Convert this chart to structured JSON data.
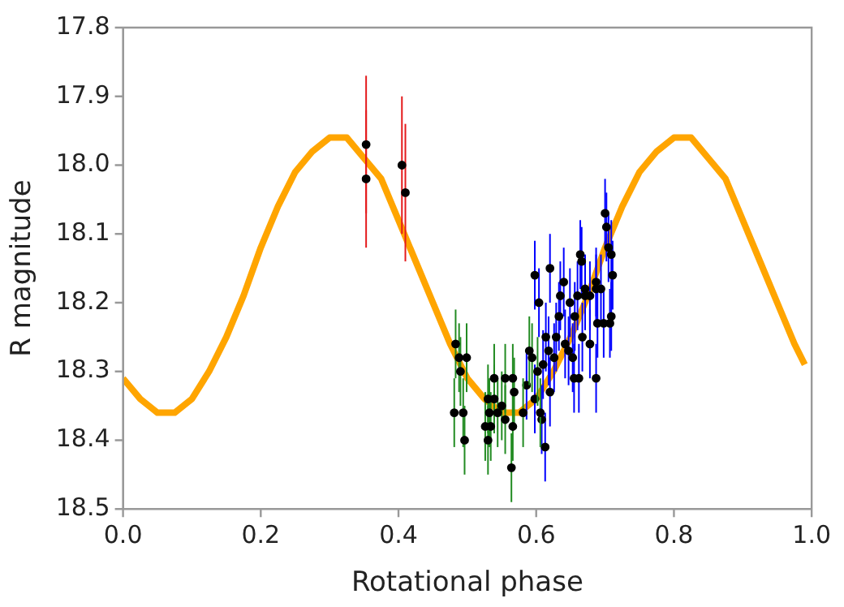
{
  "chart_data": {
    "type": "scatter",
    "xlabel": "Rotational phase",
    "ylabel": "R magnitude",
    "xlim": [
      0,
      1
    ],
    "xticks": [
      {
        "value": 0,
        "label": "0.0"
      },
      0.2,
      0.4,
      0.6,
      0.8,
      {
        "value": 1,
        "label": "1.0"
      }
    ],
    "ylim": [
      18.5,
      17.8
    ],
    "yticks": [
      17.8,
      17.9,
      {
        "value": 18,
        "label": "18.0"
      },
      18.1,
      18.2,
      18.3,
      18.4,
      18.5
    ],
    "grid": false,
    "legend": false,
    "marker": "circle",
    "series": [
      {
        "type": "line",
        "color": "#ffa500",
        "marker": "none",
        "x": [
          0,
          0.025,
          0.05,
          0.075,
          0.1,
          0.125,
          0.15,
          0.175,
          0.2,
          0.225,
          0.25,
          0.275,
          0.3,
          0.325,
          0.35,
          0.375,
          0.4,
          0.425,
          0.45,
          0.475,
          0.5,
          0.525,
          0.55,
          0.575,
          0.6,
          0.625,
          0.65,
          0.675,
          0.7,
          0.725,
          0.75,
          0.775,
          0.8,
          0.825,
          0.85,
          0.875,
          0.9,
          0.925,
          0.95,
          0.975,
          0.99
        ],
        "values": [
          18.31,
          18.34,
          18.36,
          18.36,
          18.34,
          18.3,
          18.25,
          18.19,
          18.12,
          18.06,
          18.01,
          17.98,
          17.96,
          17.96,
          17.99,
          18.02,
          18.08,
          18.14,
          18.2,
          18.26,
          18.31,
          18.34,
          18.36,
          18.36,
          18.34,
          18.3,
          18.25,
          18.19,
          18.12,
          18.06,
          18.01,
          17.98,
          17.96,
          17.96,
          17.99,
          18.02,
          18.08,
          18.14,
          18.2,
          18.26,
          18.29
        ]
      },
      {
        "color": "#000000",
        "x": [
          0.353,
          0.353,
          0.405,
          0.41
        ],
        "values": [
          17.97,
          18.02,
          18.0,
          18.04
        ],
        "errors": [
          0.1,
          0.1,
          0.1,
          0.1
        ]
      },
      {
        "color": "#000000",
        "x": [
          0.483,
          0.488,
          0.499,
          0.49,
          0.481,
          0.494,
          0.496,
          0.53,
          0.532,
          0.539,
          0.526,
          0.534,
          0.53,
          0.539,
          0.555,
          0.566,
          0.544,
          0.555,
          0.566,
          0.568,
          0.564,
          0.55,
          0.581,
          0.594,
          0.602,
          0.59,
          0.606
        ],
        "values": [
          18.26,
          18.28,
          18.28,
          18.3,
          18.36,
          18.36,
          18.4,
          18.34,
          18.36,
          18.34,
          18.38,
          18.38,
          18.4,
          18.31,
          18.31,
          18.31,
          18.36,
          18.37,
          18.38,
          18.33,
          18.44,
          18.35,
          18.36,
          18.28,
          18.3,
          18.27,
          18.36
        ],
        "errors": [
          0.05,
          0.05,
          0.05,
          0.05,
          0.05,
          0.05,
          0.05,
          0.05,
          0.05,
          0.05,
          0.05,
          0.05,
          0.05,
          0.05,
          0.05,
          0.05,
          0.05,
          0.05,
          0.05,
          0.05,
          0.05,
          0.05,
          0.05,
          0.05,
          0.05,
          0.05,
          0.05
        ]
      },
      {
        "color": "#000000",
        "x": [
          0.598,
          0.604,
          0.62,
          0.614,
          0.618,
          0.61,
          0.586,
          0.598,
          0.608,
          0.613,
          0.62,
          0.626,
          0.629,
          0.633,
          0.635,
          0.64,
          0.642,
          0.647,
          0.653,
          0.649,
          0.66,
          0.656,
          0.655,
          0.662,
          0.667,
          0.671,
          0.678,
          0.664,
          0.666,
          0.678,
          0.687,
          0.687,
          0.689,
          0.694,
          0.698,
          0.707,
          0.709,
          0.711,
          0.705,
          0.702,
          0.7,
          0.709,
          0.687,
          0.671
        ],
        "values": [
          18.16,
          18.2,
          18.15,
          18.25,
          18.27,
          18.29,
          18.32,
          18.34,
          18.37,
          18.41,
          18.33,
          18.28,
          18.25,
          18.22,
          18.19,
          18.17,
          18.26,
          18.27,
          18.28,
          18.2,
          18.19,
          18.22,
          18.31,
          18.31,
          18.25,
          18.18,
          18.19,
          18.13,
          18.14,
          18.26,
          18.18,
          18.31,
          18.23,
          18.18,
          18.23,
          18.23,
          18.22,
          18.16,
          18.12,
          18.09,
          18.07,
          18.13,
          18.17,
          18.19
        ],
        "errors": [
          0.05,
          0.05,
          0.05,
          0.05,
          0.05,
          0.05,
          0.05,
          0.05,
          0.05,
          0.05,
          0.05,
          0.05,
          0.05,
          0.05,
          0.05,
          0.05,
          0.05,
          0.05,
          0.05,
          0.05,
          0.05,
          0.05,
          0.05,
          0.05,
          0.05,
          0.05,
          0.05,
          0.05,
          0.05,
          0.05,
          0.05,
          0.05,
          0.05,
          0.05,
          0.05,
          0.05,
          0.05,
          0.05,
          0.05,
          0.05,
          0.05,
          0.05,
          0.05,
          0.05
        ]
      }
    ]
  }
}
